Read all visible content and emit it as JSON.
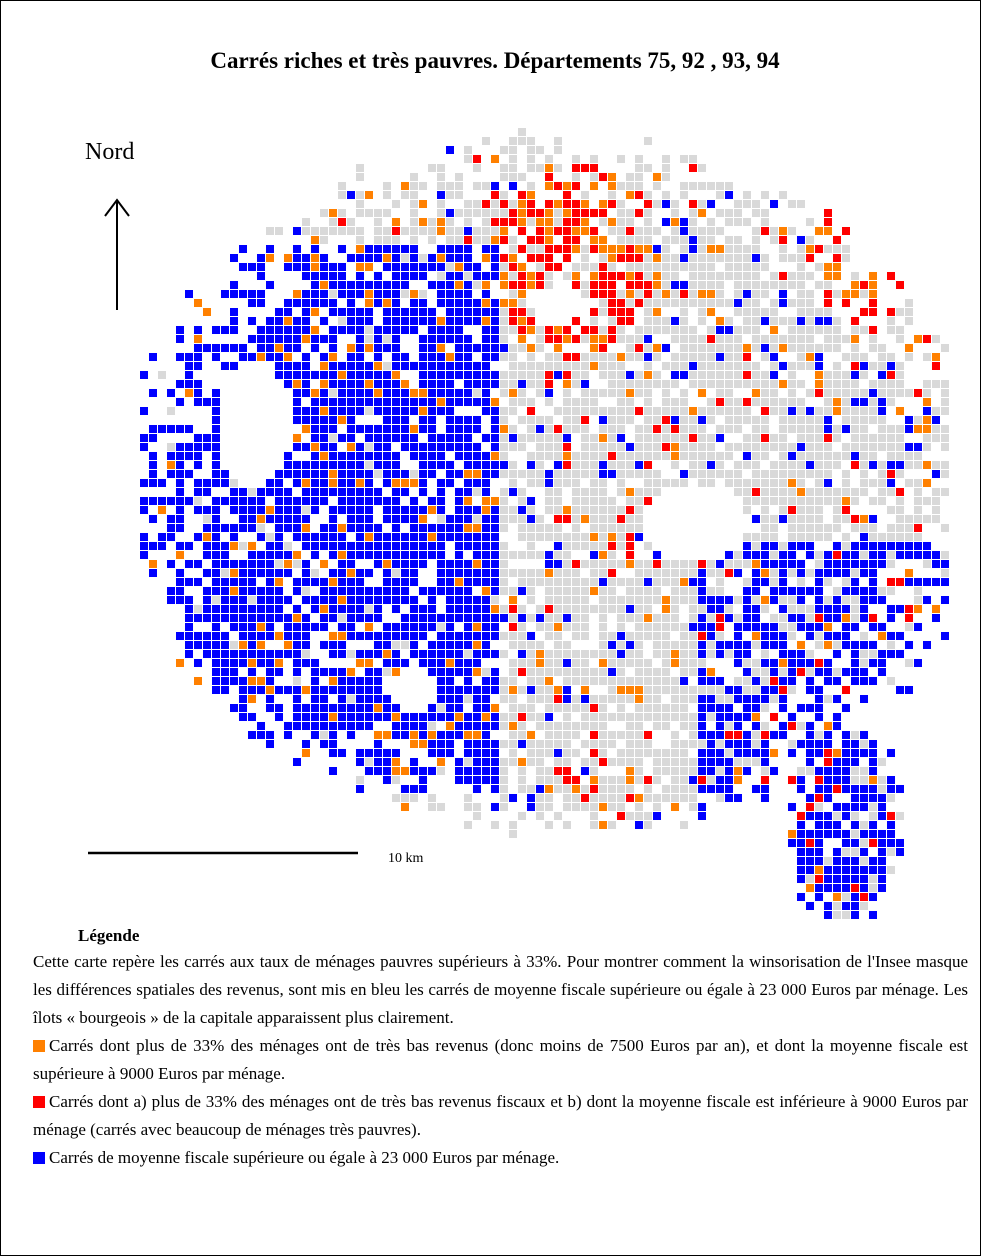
{
  "title": "Carrés riches et très pauvres. Départements 75, 92 , 93, 94",
  "north_label": "Nord",
  "scale_label": "10 km",
  "legend": {
    "heading": "Légende",
    "intro": "Cette carte repère les carrés aux taux de ménages pauvres supérieurs à 33%. Pour montrer comment la winsorisation de l'Insee masque les différences spatiales des revenus, sont mis en bleu les carrés de moyenne fiscale supérieure ou égale à 23 000 Euros par ménage. Les îlots « bourgeois » de la capitale apparaissent plus clairement.",
    "items": [
      {
        "color": "#ff8000",
        "text": "Carrés dont plus de 33% des ménages ont de très bas revenus (donc moins de 7500 Euros par an), et dont la moyenne fiscale est supérieure à 9000 Euros par ménage."
      },
      {
        "color": "#ff0000",
        "text": "Carrés dont a) plus de 33% des ménages ont de très bas revenus fiscaux et b) dont la moyenne fiscale est inférieure à 9000 Euros par ménage (carrés avec beaucoup de ménages très pauvres)."
      },
      {
        "color": "#0000ff",
        "text": "Carrés de moyenne fiscale supérieure ou égale à 23 000 Euros par ménage."
      }
    ]
  }
}
